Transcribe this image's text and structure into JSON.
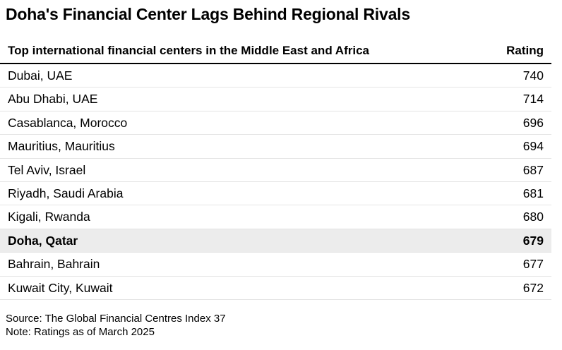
{
  "title": "Doha's Financial Center Lags Behind Regional Rivals",
  "chart_data": {
    "type": "table",
    "columns": [
      "Top international financial centers in the Middle East and Africa",
      "Rating"
    ],
    "rows": [
      {
        "name": "Dubai, UAE",
        "value": "740"
      },
      {
        "name": "Abu Dhabi, UAE",
        "value": "714"
      },
      {
        "name": "Casablanca, Morocco",
        "value": "696"
      },
      {
        "name": "Mauritius, Mauritius",
        "value": "694"
      },
      {
        "name": "Tel Aviv, Israel",
        "value": "687"
      },
      {
        "name": "Riyadh, Saudi Arabia",
        "value": "681"
      },
      {
        "name": "Kigali, Rwanda",
        "value": "680"
      },
      {
        "name": "Doha, Qatar",
        "value": "679",
        "highlighted": true
      },
      {
        "name": "Bahrain, Bahrain",
        "value": "677"
      },
      {
        "name": "Kuwait City, Kuwait",
        "value": "672"
      }
    ],
    "highlight_color": "#ececec"
  },
  "footer": {
    "source": "Source: The Global Financial Centres Index 37",
    "note": "Note: Ratings as of March 2025"
  }
}
